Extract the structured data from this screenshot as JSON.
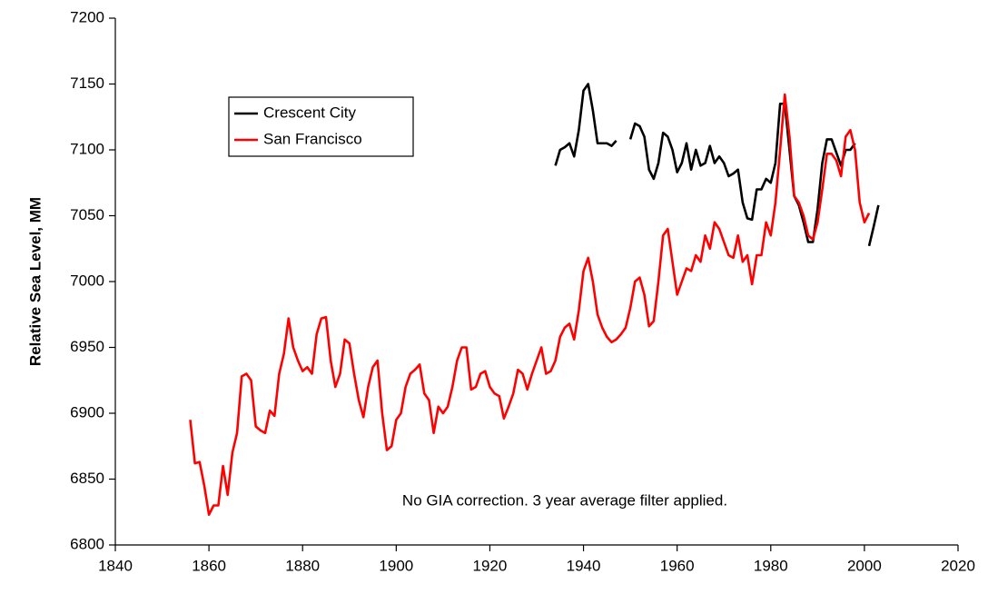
{
  "chart_data": {
    "type": "line",
    "ylabel": "Relative Sea Level, MM",
    "annotation": "No GIA correction.  3 year average filter applied.",
    "xlim": [
      1840,
      2020
    ],
    "xticks": [
      1840,
      1860,
      1880,
      1900,
      1920,
      1940,
      1960,
      1980,
      2000,
      2020
    ],
    "ylim": [
      6800,
      7200
    ],
    "yticks": [
      6800,
      6850,
      6900,
      6950,
      7000,
      7050,
      7100,
      7150,
      7200
    ],
    "grid": false,
    "legend": "upper left",
    "series": [
      {
        "name": "Crescent City",
        "color": "#000000",
        "x": [
          1934,
          1935,
          1936,
          1937,
          1938,
          1939,
          1940,
          1941,
          1942,
          1943,
          1944,
          1945,
          1946,
          1947,
          1948,
          1949,
          1950,
          1951,
          1952,
          1953,
          1954,
          1955,
          1956,
          1957,
          1958,
          1959,
          1960,
          1961,
          1962,
          1963,
          1964,
          1965,
          1966,
          1967,
          1968,
          1969,
          1970,
          1971,
          1972,
          1973,
          1974,
          1975,
          1976,
          1977,
          1978,
          1979,
          1980,
          1981,
          1982,
          1983,
          1984,
          1985,
          1986,
          1987,
          1988,
          1989,
          1990,
          1991,
          1992,
          1993,
          1994,
          1995,
          1996,
          1997,
          1998,
          1999,
          2000,
          2001,
          2002,
          2003
        ],
        "values": [
          7088,
          7100,
          7102,
          7105,
          7095,
          7115,
          7145,
          7150,
          7130,
          7105,
          7105,
          7105,
          7103,
          7107,
          null,
          null,
          7108,
          7120,
          7118,
          7110,
          7085,
          7078,
          7090,
          7113,
          7110,
          7100,
          7083,
          7090,
          7105,
          7085,
          7100,
          7088,
          7090,
          7103,
          7090,
          7095,
          7090,
          7080,
          7082,
          7085,
          7060,
          7048,
          7047,
          7070,
          7070,
          7078,
          7075,
          7090,
          7135,
          7135,
          7100,
          7065,
          7058,
          7045,
          7030,
          7030,
          7055,
          7090,
          7108,
          7108,
          7098,
          7088,
          7100,
          7100,
          7105,
          null,
          null,
          7027,
          7042,
          7058
        ]
      },
      {
        "name": "San Francisco",
        "color": "#ff0000",
        "x": [
          1856,
          1857,
          1858,
          1859,
          1860,
          1861,
          1862,
          1863,
          1864,
          1865,
          1866,
          1867,
          1868,
          1869,
          1870,
          1871,
          1872,
          1873,
          1874,
          1875,
          1876,
          1877,
          1878,
          1879,
          1880,
          1881,
          1882,
          1883,
          1884,
          1885,
          1886,
          1887,
          1888,
          1889,
          1890,
          1891,
          1892,
          1893,
          1894,
          1895,
          1896,
          1897,
          1898,
          1899,
          1900,
          1901,
          1902,
          1903,
          1904,
          1905,
          1906,
          1907,
          1908,
          1909,
          1910,
          1911,
          1912,
          1913,
          1914,
          1915,
          1916,
          1917,
          1918,
          1919,
          1920,
          1921,
          1922,
          1923,
          1924,
          1925,
          1926,
          1927,
          1928,
          1929,
          1930,
          1931,
          1932,
          1933,
          1934,
          1935,
          1936,
          1937,
          1938,
          1939,
          1940,
          1941,
          1942,
          1943,
          1944,
          1945,
          1946,
          1947,
          1948,
          1949,
          1950,
          1951,
          1952,
          1953,
          1954,
          1955,
          1956,
          1957,
          1958,
          1959,
          1960,
          1961,
          1962,
          1963,
          1964,
          1965,
          1966,
          1967,
          1968,
          1969,
          1970,
          1971,
          1972,
          1973,
          1974,
          1975,
          1976,
          1977,
          1978,
          1979,
          1980,
          1981,
          1982,
          1983,
          1984,
          1985,
          1986,
          1987,
          1988,
          1989,
          1990,
          1991,
          1992,
          1993,
          1994,
          1995,
          1996,
          1997,
          1998,
          1999,
          2000,
          2001
        ],
        "values": [
          6895,
          6862,
          6863,
          6845,
          6823,
          6830,
          6830,
          6860,
          6838,
          6870,
          6885,
          6928,
          6930,
          6925,
          6890,
          6887,
          6885,
          6902,
          6898,
          6930,
          6945,
          6972,
          6950,
          6940,
          6932,
          6935,
          6930,
          6960,
          6972,
          6973,
          6940,
          6920,
          6930,
          6956,
          6953,
          6930,
          6910,
          6897,
          6920,
          6935,
          6940,
          6900,
          6872,
          6875,
          6895,
          6900,
          6920,
          6930,
          6933,
          6937,
          6915,
          6910,
          6885,
          6905,
          6900,
          6905,
          6920,
          6940,
          6950,
          6950,
          6918,
          6920,
          6930,
          6932,
          6920,
          6915,
          6913,
          6896,
          6905,
          6915,
          6933,
          6930,
          6918,
          6930,
          6940,
          6950,
          6930,
          6932,
          6940,
          6958,
          6965,
          6968,
          6956,
          6978,
          7008,
          7018,
          7000,
          6975,
          6965,
          6958,
          6954,
          6956,
          6960,
          6965,
          6980,
          7000,
          7003,
          6990,
          6966,
          6970,
          7000,
          7035,
          7040,
          7015,
          6990,
          7000,
          7010,
          7008,
          7020,
          7015,
          7035,
          7025,
          7045,
          7040,
          7030,
          7020,
          7018,
          7035,
          7015,
          7020,
          6998,
          7020,
          7020,
          7045,
          7035,
          7060,
          7100,
          7142,
          7110,
          7065,
          7060,
          7050,
          7035,
          7032,
          7045,
          7070,
          7097,
          7097,
          7092,
          7080,
          7110,
          7115,
          7100,
          7060,
          7045,
          7052
        ]
      }
    ]
  }
}
